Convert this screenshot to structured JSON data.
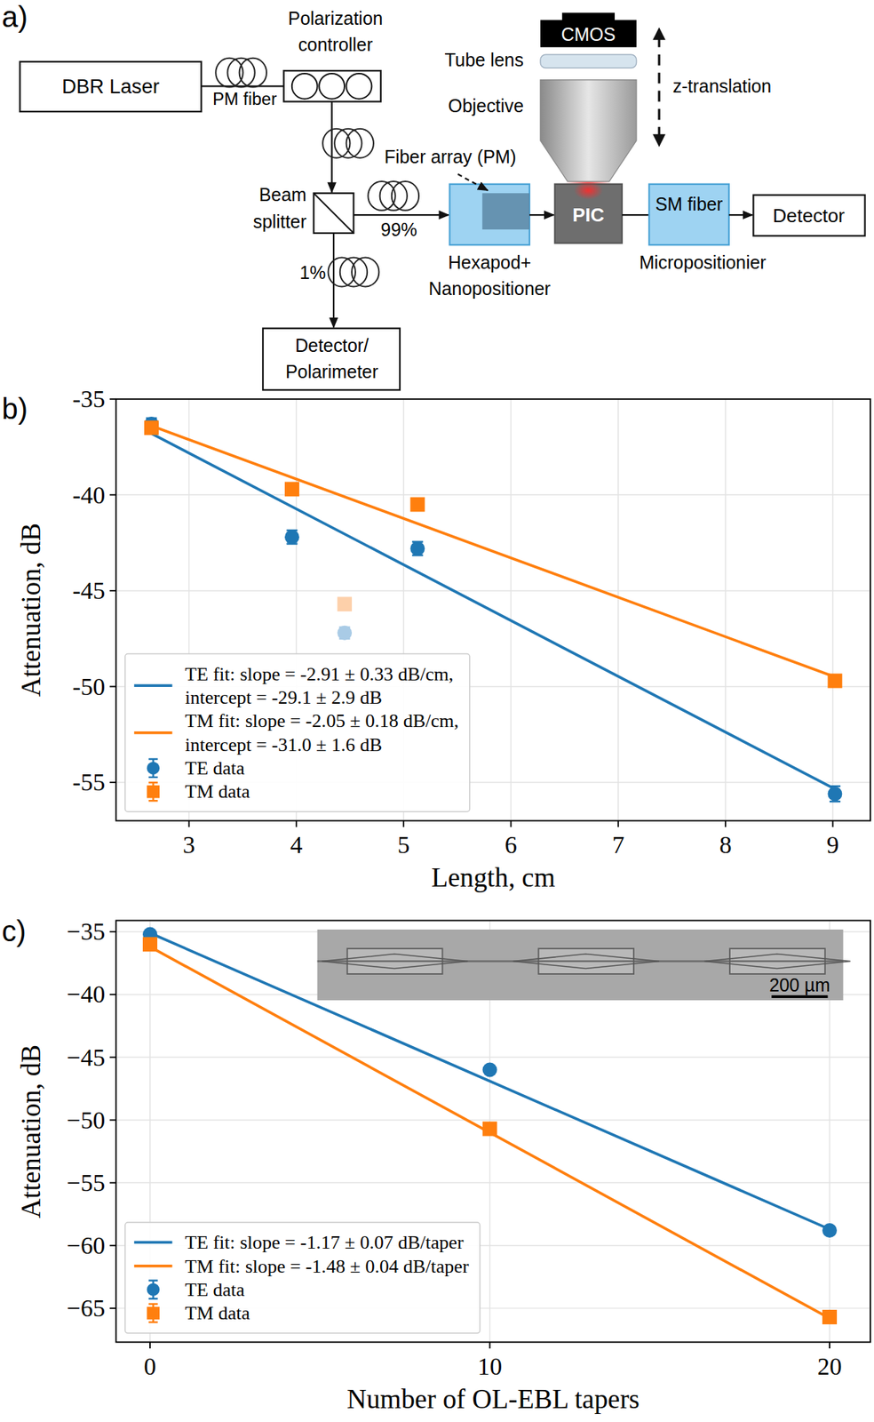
{
  "panels": [
    "a)",
    "b)",
    "c)"
  ],
  "diagram": {
    "laser": "DBR Laser",
    "pm_fiber": "PM fiber",
    "polarization_controller": [
      "Polarization",
      "controller"
    ],
    "beam_splitter": [
      "Beam",
      "splitter"
    ],
    "split_main": "99%",
    "split_tap": "1%",
    "monitor": [
      "Detector/",
      "Polarimeter"
    ],
    "fiber_array": "Fiber array (PM)",
    "stage_in": [
      "Hexapod+",
      "Nanopositioner"
    ],
    "pic": "PIC",
    "camera": "CMOS",
    "tube_lens": "Tube lens",
    "objective": "Objective",
    "z": "z-translation",
    "sm_fiber": "SM fiber",
    "stage_out": "Micropositionier",
    "detector": "Detector"
  },
  "chart_data": [
    {
      "type": "scatter",
      "x_label": "Length, cm",
      "y_label": "Attenuation, dB",
      "xlim": [
        2.32,
        9.35
      ],
      "ylim": [
        -57,
        -35
      ],
      "xticks": [
        3,
        4,
        5,
        6,
        7,
        8,
        9
      ],
      "yticks": [
        -55,
        -50,
        -45,
        -40,
        -35
      ],
      "grid": true,
      "legend": "lower left",
      "series": [
        {
          "name": "TE fit: slope = -2.91 ± 0.33 dB/cm, intercept = -29.1 ± 2.9 dB",
          "type": "line",
          "color": "#1f77b4",
          "x": [
            2.65,
            9.02
          ],
          "values": [
            -36.8,
            -55.35
          ]
        },
        {
          "name": "TM fit: slope = -2.05 ± 0.18 dB/cm, intercept = -31.0 ± 1.6 dB",
          "type": "line",
          "color": "#ff7f0e",
          "x": [
            2.65,
            9.02
          ],
          "values": [
            -36.4,
            -49.5
          ]
        },
        {
          "name": "TE data",
          "type": "scatter",
          "marker": "circle",
          "color": "#1f77b4",
          "x": [
            2.65,
            3.96,
            5.13,
            9.02
          ],
          "values": [
            -36.3,
            -42.2,
            -42.8,
            -55.6
          ],
          "errors": [
            0.3,
            0.35,
            0.35,
            0.4
          ]
        },
        {
          "name": "TM data",
          "type": "scatter",
          "marker": "square",
          "color": "#ff7f0e",
          "x": [
            2.65,
            3.96,
            5.13,
            9.02
          ],
          "values": [
            -36.5,
            -39.7,
            -40.5,
            -49.7
          ],
          "errors": [
            0.3,
            0.3,
            0.3,
            0.3
          ]
        },
        {
          "type": "scatter",
          "marker": "circle",
          "color": "#a9cbe6",
          "x": [
            4.45
          ],
          "values": [
            -47.2
          ],
          "errors": [
            0.3
          ]
        },
        {
          "type": "scatter",
          "marker": "square",
          "color": "#fdd0aa",
          "x": [
            4.45
          ],
          "values": [
            -45.7
          ],
          "errors": [
            0.3
          ]
        }
      ]
    },
    {
      "type": "scatter",
      "x_label": "Number of OL-EBL tapers",
      "y_label": "Attenuation, dB",
      "xlim": [
        -1,
        21.2
      ],
      "ylim": [
        -67.7,
        -34.1
      ],
      "xticks": [
        0,
        10,
        20
      ],
      "yticks": [
        {
          "value": -65,
          "label": "−65"
        },
        {
          "value": -60,
          "label": "−60"
        },
        {
          "value": -55,
          "label": "−55"
        },
        {
          "value": -50,
          "label": "−50"
        },
        {
          "value": -45,
          "label": "−45"
        },
        {
          "value": -40,
          "label": "−40"
        },
        {
          "value": -35,
          "label": "−35"
        }
      ],
      "grid": true,
      "legend": "lower left",
      "inset": {
        "scale_bar": "200 µm"
      },
      "series": [
        {
          "name": "TE fit: slope = -1.17 ± 0.07 dB/taper",
          "type": "line",
          "color": "#1f77b4",
          "x": [
            0,
            20
          ],
          "values": [
            -35.1,
            -58.7
          ]
        },
        {
          "name": "TM fit: slope = -1.48 ± 0.04 dB/taper",
          "type": "line",
          "color": "#ff7f0e",
          "x": [
            0,
            20
          ],
          "values": [
            -36.2,
            -65.8
          ]
        },
        {
          "name": "TE data",
          "type": "scatter",
          "marker": "circle",
          "color": "#1f77b4",
          "x": [
            0,
            10,
            20
          ],
          "values": [
            -35.2,
            -46.0,
            -58.8
          ],
          "errors": [
            0.2,
            0.3,
            0.3
          ]
        },
        {
          "name": "TM data",
          "type": "scatter",
          "marker": "square",
          "color": "#ff7f0e",
          "x": [
            0,
            10,
            20
          ],
          "values": [
            -36.0,
            -50.7,
            -65.7
          ],
          "errors": [
            0.2,
            0.2,
            0.2
          ]
        }
      ]
    }
  ]
}
